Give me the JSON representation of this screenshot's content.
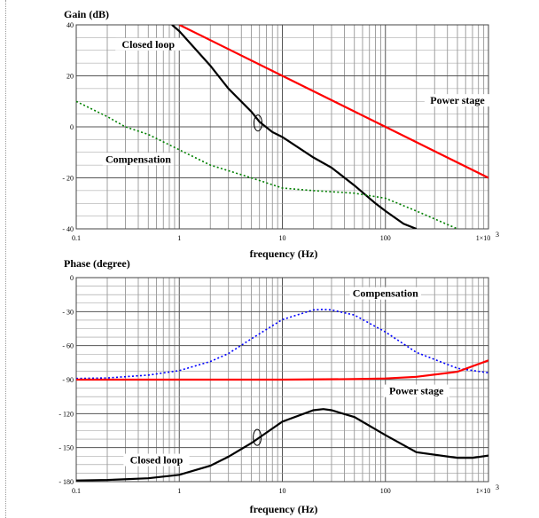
{
  "chart_data": [
    {
      "type": "line",
      "title": "Gain (dB)",
      "xlabel": "frequency (Hz)",
      "ylabel": "Gain (dB)",
      "x_scale": "log",
      "xlim": [
        0.1,
        1000
      ],
      "ylim": [
        -40,
        40
      ],
      "x_ticks": [
        0.1,
        1,
        10,
        100,
        1000
      ],
      "x_tick_labels": [
        "0.1",
        "1",
        "10",
        "100",
        "1×10"
      ],
      "x_tick_exponent": "3",
      "y_ticks": [
        -40,
        -20,
        0,
        20,
        40
      ],
      "y_tick_labels": [
        "- 40",
        "- 20",
        "0",
        "20",
        "40"
      ],
      "grid": true,
      "series": [
        {
          "name": "Closed loop",
          "color": "#000000",
          "style": "solid",
          "x": [
            0.85,
            1,
            2,
            3,
            5,
            6,
            8,
            10,
            20,
            30,
            50,
            80,
            100,
            150,
            200
          ],
          "y": [
            40,
            37.5,
            24,
            15,
            6,
            2,
            -2,
            -4,
            -12,
            -16,
            -23,
            -30,
            -33,
            -38,
            -40
          ]
        },
        {
          "name": "Power stage",
          "color": "#ff0000",
          "style": "solid",
          "x": [
            1,
            10,
            100,
            1000
          ],
          "y": [
            40,
            20,
            0,
            -20
          ]
        },
        {
          "name": "Compensation",
          "color": "#008000",
          "style": "dotted",
          "x": [
            0.1,
            0.2,
            0.3,
            0.5,
            1,
            2,
            5,
            10,
            20,
            50,
            100,
            200,
            500,
            1000
          ],
          "y": [
            10,
            4,
            0,
            -3,
            -9,
            -15,
            -20,
            -24,
            -25,
            -26,
            -28,
            -33,
            -40,
            -46
          ]
        }
      ],
      "annotations": [
        {
          "text": "Closed loop",
          "x": 0.5,
          "y": 31
        },
        {
          "text": "Power stage",
          "x": 500,
          "y": 9
        },
        {
          "text": "Compensation",
          "x": 0.4,
          "y": -14
        },
        {
          "text": "",
          "x": 5.8,
          "y": 1.5,
          "shape": "ellipse"
        }
      ]
    },
    {
      "type": "line",
      "title": "Phase (degree)",
      "xlabel": "frequency (Hz)",
      "ylabel": "Phase (degree)",
      "x_scale": "log",
      "xlim": [
        0.1,
        1000
      ],
      "ylim": [
        -180,
        0
      ],
      "x_ticks": [
        0.1,
        1,
        10,
        100,
        1000
      ],
      "x_tick_labels": [
        "0.1",
        "1",
        "10",
        "100",
        "1×10"
      ],
      "x_tick_exponent": "3",
      "y_ticks": [
        -180,
        -150,
        -120,
        -90,
        -60,
        -30,
        0
      ],
      "y_tick_labels": [
        "- 180",
        "- 150",
        "- 120",
        "- 90",
        "- 60",
        "- 30",
        "0"
      ],
      "grid": true,
      "series": [
        {
          "name": "Compensation",
          "color": "#0000ff",
          "style": "dotted",
          "x": [
            0.1,
            0.2,
            0.5,
            1,
            2,
            3,
            5,
            10,
            20,
            25,
            30,
            50,
            100,
            200,
            500,
            1000
          ],
          "y": [
            -89,
            -88.5,
            -86,
            -82,
            -74,
            -67,
            -54,
            -37,
            -28.5,
            -28,
            -28.5,
            -33,
            -48,
            -66,
            -80,
            -84
          ]
        },
        {
          "name": "Power stage",
          "color": "#ff0000",
          "style": "solid",
          "x": [
            0.1,
            1,
            10,
            50,
            100,
            200,
            500,
            1000
          ],
          "y": [
            -90,
            -90,
            -90,
            -89.5,
            -89,
            -87.5,
            -83,
            -73
          ]
        },
        {
          "name": "Closed loop",
          "color": "#000000",
          "style": "solid",
          "x": [
            0.1,
            0.2,
            0.5,
            1,
            2,
            3,
            5,
            10,
            20,
            25,
            30,
            50,
            100,
            200,
            500,
            700,
            1000
          ],
          "y": [
            -179,
            -178.5,
            -177,
            -174,
            -166,
            -158,
            -146,
            -127,
            -117,
            -116,
            -117,
            -123,
            -139,
            -154,
            -159,
            -159,
            -157
          ]
        }
      ],
      "annotations": [
        {
          "text": "Compensation",
          "x": 100,
          "y": -17
        },
        {
          "text": "Power stage",
          "x": 200,
          "y": -103
        },
        {
          "text": "Closed loop",
          "x": 0.6,
          "y": -164
        },
        {
          "text": "",
          "x": 5.7,
          "y": -141,
          "shape": "ellipse"
        }
      ]
    }
  ]
}
